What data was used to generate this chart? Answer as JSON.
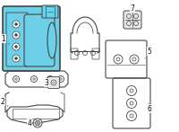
{
  "background_color": "#ffffff",
  "fig_width": 2.0,
  "fig_height": 1.47,
  "dpi": 100,
  "highlight_color": "#6dd0e8",
  "line_color": "#444444",
  "part_color": "#e8e8e8",
  "label_color": "#222222"
}
